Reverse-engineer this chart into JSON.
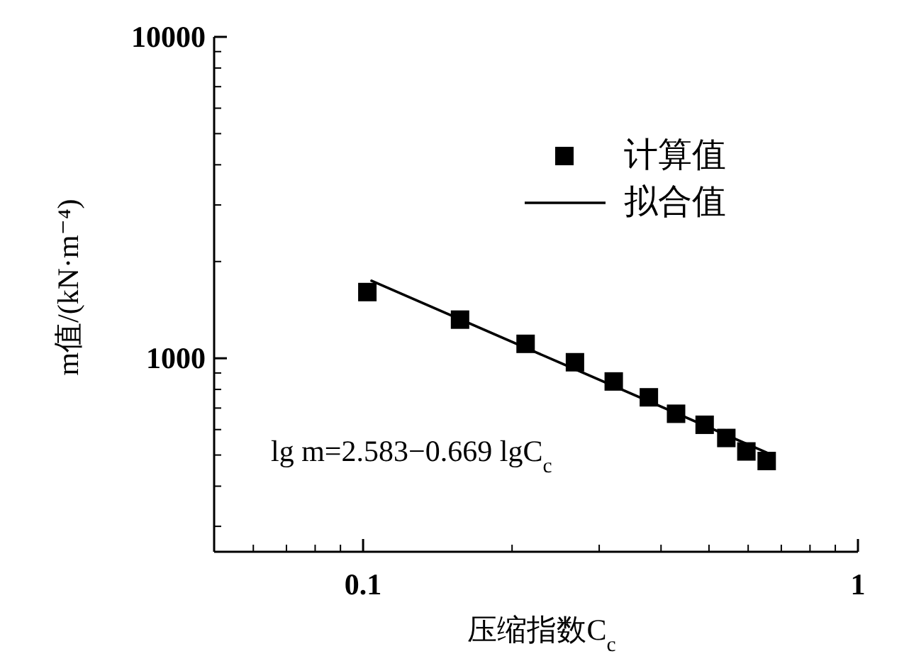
{
  "chart_data": {
    "type": "scatter",
    "xlabel": "压缩指数C$_{c}$",
    "ylabel": "m值/(kN·m⁻⁴)",
    "log": "xy",
    "xlim": [
      0.05,
      1
    ],
    "xticks": [
      0.1,
      1
    ],
    "ylim": [
      250,
      10000
    ],
    "yticks": [
      1000,
      10000
    ],
    "grid": false,
    "legend": "top right",
    "series": [
      {
        "name": "计算值",
        "marker": "square",
        "color": "#000000",
        "x": [
          0.102,
          0.157,
          0.213,
          0.268,
          0.321,
          0.378,
          0.429,
          0.49,
          0.542,
          0.595,
          0.654
        ],
        "values": [
          1607,
          1319,
          1109,
          972,
          847,
          756,
          672,
          621,
          565,
          513,
          479
        ]
      },
      {
        "name": "拟合值",
        "type": "line",
        "marker": "none",
        "line_style": "solid",
        "color": "#000000",
        "x": [
          0.104,
          0.654
        ],
        "values": [
          1742,
          509
        ]
      }
    ],
    "annotations": [
      "lg m=2.583−0.669 lgC$_{c}$"
    ]
  }
}
